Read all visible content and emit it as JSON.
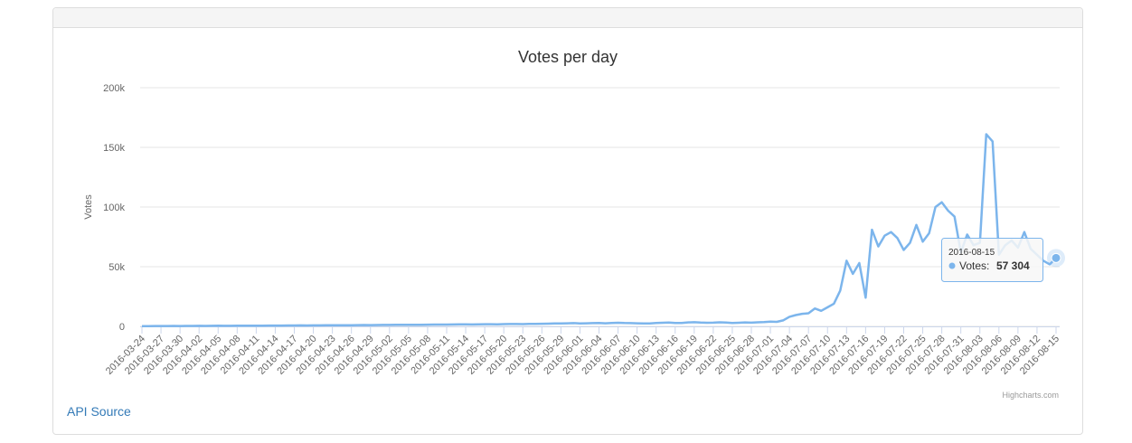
{
  "chart_data": {
    "type": "line",
    "title": "Votes per day",
    "y_label": "Votes",
    "categories": [
      "2016-03-24",
      null,
      null,
      "2016-03-27",
      null,
      null,
      "2016-03-30",
      null,
      null,
      "2016-04-02",
      null,
      null,
      "2016-04-05",
      null,
      null,
      "2016-04-08",
      null,
      null,
      "2016-04-11",
      null,
      null,
      "2016-04-14",
      null,
      null,
      "2016-04-17",
      null,
      null,
      "2016-04-20",
      null,
      null,
      "2016-04-23",
      null,
      null,
      "2016-04-26",
      null,
      null,
      "2016-04-29",
      null,
      null,
      "2016-05-02",
      null,
      null,
      "2016-05-05",
      null,
      null,
      "2016-05-08",
      null,
      null,
      "2016-05-11",
      null,
      null,
      "2016-05-14",
      null,
      null,
      "2016-05-17",
      null,
      null,
      "2016-05-20",
      null,
      null,
      "2016-05-23",
      null,
      null,
      "2016-05-26",
      null,
      null,
      "2016-05-29",
      null,
      null,
      "2016-06-01",
      null,
      null,
      "2016-06-04",
      null,
      null,
      "2016-06-07",
      null,
      null,
      "2016-06-10",
      null,
      null,
      "2016-06-13",
      null,
      null,
      "2016-06-16",
      null,
      null,
      "2016-06-19",
      null,
      null,
      "2016-06-22",
      null,
      null,
      "2016-06-25",
      null,
      null,
      "2016-06-28",
      null,
      null,
      "2016-07-01",
      null,
      null,
      "2016-07-04",
      null,
      null,
      "2016-07-07",
      null,
      null,
      "2016-07-10",
      null,
      null,
      "2016-07-13",
      null,
      null,
      "2016-07-16",
      null,
      null,
      "2016-07-19",
      null,
      null,
      "2016-07-22",
      null,
      null,
      "2016-07-25",
      null,
      null,
      "2016-07-28",
      null,
      null,
      "2016-07-31",
      null,
      null,
      "2016-08-03",
      null,
      null,
      "2016-08-06",
      null,
      null,
      "2016-08-09",
      null,
      null,
      "2016-08-12",
      null,
      null,
      "2016-08-15"
    ],
    "series": [
      {
        "name": "Votes",
        "color": "#7cb5ec",
        "values": [
          200,
          250,
          300,
          280,
          320,
          350,
          300,
          380,
          400,
          420,
          380,
          450,
          500,
          480,
          460,
          520,
          550,
          600,
          580,
          620,
          650,
          700,
          680,
          720,
          750,
          800,
          780,
          820,
          850,
          900,
          880,
          950,
          1000,
          980,
          1050,
          1100,
          1080,
          1150,
          1200,
          1250,
          1300,
          1280,
          1350,
          1400,
          1300,
          1450,
          1500,
          1550,
          1480,
          1600,
          1650,
          1700,
          1600,
          1750,
          1800,
          1850,
          1700,
          1900,
          1950,
          2000,
          1900,
          2050,
          2100,
          2200,
          2300,
          2400,
          2500,
          2600,
          2700,
          2500,
          2600,
          2700,
          2800,
          2600,
          2900,
          3000,
          2800,
          2700,
          2600,
          2400,
          2500,
          2800,
          3000,
          3200,
          2900,
          2800,
          3300,
          3500,
          3200,
          3000,
          3100,
          3400,
          3200,
          2800,
          3000,
          3300,
          3100,
          3400,
          3600,
          4000,
          3800,
          5000,
          8000,
          9500,
          10500,
          11000,
          15000,
          13000,
          16000,
          19000,
          30000,
          55000,
          44000,
          53000,
          24000,
          81000,
          67000,
          76000,
          79000,
          74000,
          64000,
          70000,
          85000,
          71000,
          78000,
          100000,
          104000,
          97000,
          92000,
          62000,
          77000,
          68000,
          70000,
          161000,
          155000,
          60000,
          68000,
          72000,
          66000,
          79000,
          65000,
          60000,
          55000,
          52000,
          57304
        ]
      }
    ],
    "ylim": [
      0,
      200000
    ],
    "yticks": [
      0,
      {
        "value": 50000,
        "label": "50k"
      },
      {
        "value": 100000,
        "label": "100k"
      },
      {
        "value": 150000,
        "label": "150k"
      },
      {
        "value": 200000,
        "label": "200k"
      }
    ],
    "grid": true,
    "tooltip": {
      "series_label": "Votes:",
      "value_label": "57 304"
    },
    "credits": "Highcharts.com"
  },
  "link": "API Source"
}
